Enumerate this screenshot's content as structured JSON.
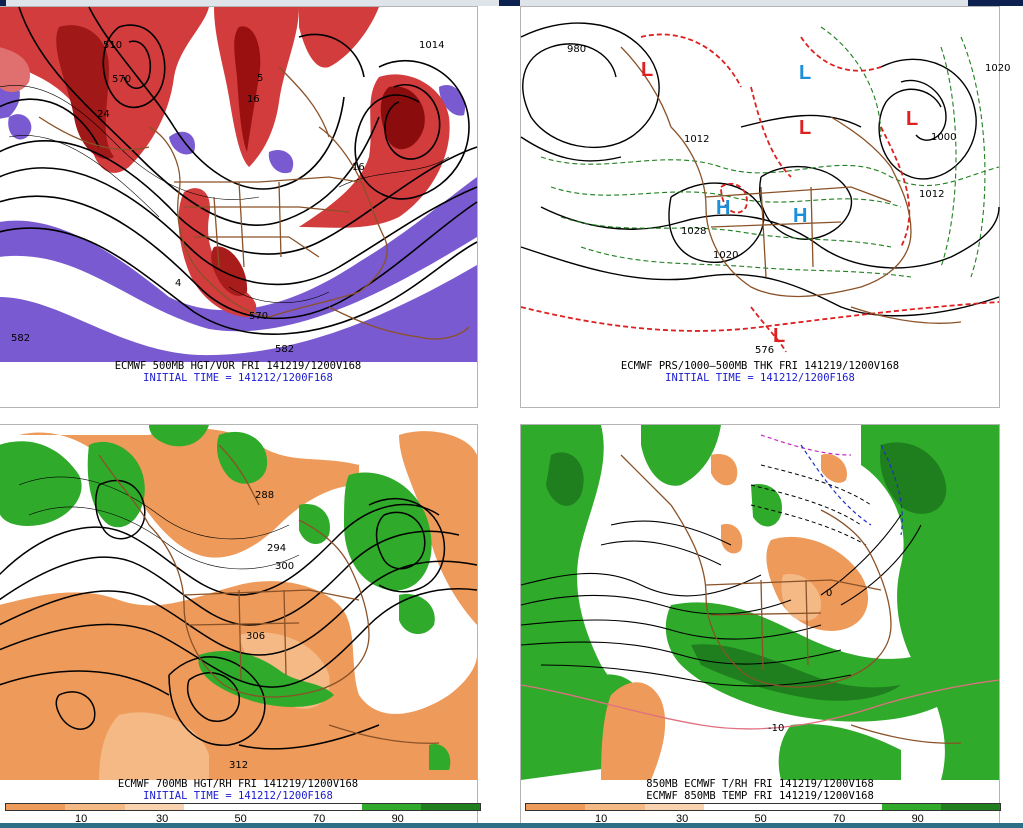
{
  "colors": {
    "topbar": "#0c2150",
    "vort_red": "#d23c3c",
    "vort_blue": "#7a5ad0",
    "dry_orange": "#ee9a5a",
    "moist_green": "#2faa2a",
    "thickness_red": "#dd2020",
    "moisture_dkgreen": "#1f7f1f"
  },
  "panels": [
    {
      "id": "vort500",
      "caption_line1": "ECMWF 500MB HGT/VOR FRI 141219/1200V168",
      "caption_line2": "INITIAL TIME = 141212/1200F168",
      "contour_labels": [
        "510",
        "570",
        "5",
        "16",
        "582",
        "570",
        "582",
        "24",
        "16",
        "1014",
        "4"
      ]
    },
    {
      "id": "prs_thk",
      "caption_line1": "ECMWF PRS/1000–500MB THK FRI 141219/1200V168",
      "caption_line2": "INITIAL TIME = 141212/1200F168",
      "contour_labels": [
        "980",
        "1020",
        "1012",
        "1028",
        "1020",
        "1012",
        "1000",
        "576"
      ],
      "symbols": [
        "L",
        "L",
        "L",
        "L",
        "H",
        "H",
        "L"
      ]
    },
    {
      "id": "rh700",
      "caption_line1": "ECMWF 700MB HGT/RH FRI 141219/1200V168",
      "caption_line2": "INITIAL TIME = 141212/1200F168",
      "contour_labels": [
        "288",
        "294",
        "300",
        "306",
        "312"
      ],
      "colorbar_ticks": [
        "10",
        "30",
        "50",
        "70",
        "90"
      ]
    },
    {
      "id": "t850",
      "caption_line1": "850MB ECMWF T/RH FRI 141219/1200V168",
      "caption_line2": "ECMWF 850MB TEMP FRI 141219/1200V168",
      "contour_labels": [
        "0",
        "-10"
      ],
      "colorbar_ticks": [
        "10",
        "30",
        "50",
        "70",
        "90"
      ]
    }
  ]
}
